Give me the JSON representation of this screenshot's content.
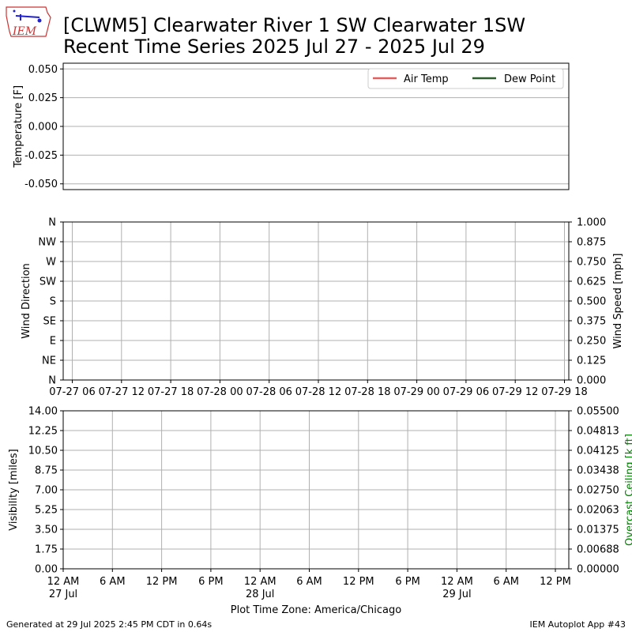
{
  "logo": {
    "text": "IEM"
  },
  "title": {
    "line1": "[CLWM5] Clearwater River 1 SW Clearwater 1SW",
    "line2": "Recent Time Series 2025 Jul 27 - 2025 Jul 29"
  },
  "footer": {
    "left": "Generated at 29 Jul 2025 2:45 PM CDT in 0.64s",
    "right": "IEM Autoplot App #43"
  },
  "colors": {
    "air_temp": "#e06060",
    "dew_point": "#2e5e2e",
    "ceiling_label": "#008000",
    "grid": "#b0b0b0"
  },
  "chart_data": [
    {
      "type": "line",
      "ylabel": "Temperature [F]",
      "ylim": [
        -0.055,
        0.055
      ],
      "yticks": [
        "0.050",
        "0.025",
        "0.000",
        "-0.025",
        "-0.050"
      ],
      "ytick_values": [
        0.05,
        0.025,
        0.0,
        -0.025,
        -0.05
      ],
      "grid": "horizontal",
      "legend": "top-right",
      "series": [
        {
          "name": "Air Temp",
          "values": []
        },
        {
          "name": "Dew Point",
          "values": []
        }
      ]
    },
    {
      "type": "scatter",
      "ylabel": "Wind Direction",
      "yticks": [
        "N",
        "NE",
        "E",
        "SE",
        "S",
        "SW",
        "W",
        "NW",
        "N"
      ],
      "ylim": [
        0,
        360
      ],
      "y2label": "Wind Speed [mph]",
      "y2ticks": [
        "0.000",
        "0.125",
        "0.250",
        "0.375",
        "0.500",
        "0.625",
        "0.750",
        "0.875",
        "1.000"
      ],
      "y2lim": [
        0,
        1
      ],
      "xticks": [
        "07-27 06",
        "07-27 12",
        "07-27 18",
        "07-28 00",
        "07-28 06",
        "07-28 12",
        "07-28 18",
        "07-29 00",
        "07-29 06",
        "07-29 12",
        "07-29 18"
      ],
      "grid": "both",
      "series": []
    },
    {
      "type": "line",
      "ylabel": "Visibility [miles]",
      "ylim": [
        0,
        14
      ],
      "yticks": [
        "0.00",
        "1.75",
        "3.50",
        "5.25",
        "7.00",
        "8.75",
        "10.50",
        "12.25",
        "14.00"
      ],
      "y2label": "Overcast Ceiling [k ft]",
      "y2lim": [
        0,
        0.055
      ],
      "y2ticks": [
        "0.00000",
        "0.00688",
        "0.01375",
        "0.02063",
        "0.02750",
        "0.03438",
        "0.04125",
        "0.04813",
        "0.05500"
      ],
      "xticks": [
        {
          "line1": "12 AM",
          "line2": "27 Jul"
        },
        {
          "line1": "6 AM",
          "line2": ""
        },
        {
          "line1": "12 PM",
          "line2": ""
        },
        {
          "line1": "6 PM",
          "line2": ""
        },
        {
          "line1": "12 AM",
          "line2": "28 Jul"
        },
        {
          "line1": "6 AM",
          "line2": ""
        },
        {
          "line1": "12 PM",
          "line2": ""
        },
        {
          "line1": "6 PM",
          "line2": ""
        },
        {
          "line1": "12 AM",
          "line2": "29 Jul"
        },
        {
          "line1": "6 AM",
          "line2": ""
        },
        {
          "line1": "12 PM",
          "line2": ""
        }
      ],
      "xlabel": "Plot Time Zone: America/Chicago",
      "grid": "both",
      "series": []
    }
  ]
}
